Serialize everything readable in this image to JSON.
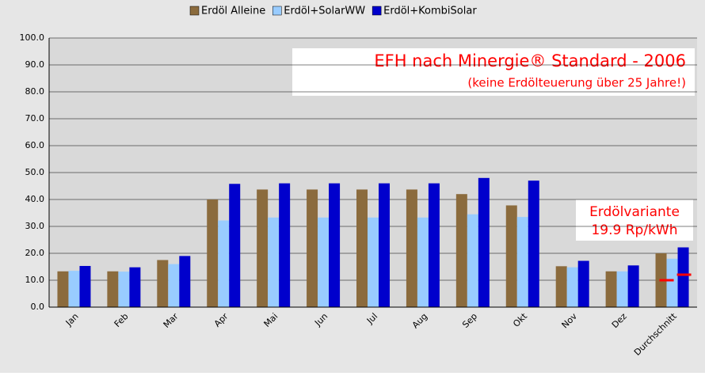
{
  "chart_data": {
    "type": "bar",
    "title": "EFH nach Minergie® Standard - 2006",
    "subtitle": "(keine Erdölteuerung über 25 Jahre!)",
    "annotations": [
      "Erdölvariante",
      "19.9 Rp/kWh"
    ],
    "categories": [
      "Jan",
      "Feb",
      "Mar",
      "Apr",
      "Mai",
      "Jun",
      "Jul",
      "Aug",
      "Sep",
      "Okt",
      "Nov",
      "Dez",
      "Durchschnitt"
    ],
    "series": [
      {
        "name": "Erdöl Alleine",
        "color": "#8b6b3d",
        "values": [
          13.3,
          13.3,
          17.5,
          40,
          43.7,
          43.7,
          43.7,
          43.7,
          42,
          37.8,
          15.2,
          13.3,
          20
        ]
      },
      {
        "name": "Erdöl+SolarWW",
        "color": "#99ccff",
        "values": [
          13.5,
          13.2,
          16,
          32.2,
          33.3,
          33.3,
          33.3,
          33.3,
          34.5,
          33.5,
          14.8,
          13.3,
          18
        ]
      },
      {
        "name": "Erdöl+KombiSolar",
        "color": "#0000cc",
        "values": [
          15.3,
          14.8,
          19,
          45.8,
          46,
          46,
          46,
          46,
          48,
          47,
          17.2,
          15.5,
          22.2
        ]
      }
    ],
    "ylim": [
      0,
      100
    ],
    "yticks": [
      {
        "value": 0,
        "label": "0.0"
      },
      {
        "value": 10,
        "label": "10.0"
      },
      {
        "value": 20,
        "label": "20.0"
      },
      {
        "value": 30,
        "label": "30.0"
      },
      {
        "value": 40,
        "label": "40.0"
      },
      {
        "value": 50,
        "label": "50.0"
      },
      {
        "value": 60,
        "label": "60.0"
      },
      {
        "value": 70,
        "label": "70.0"
      },
      {
        "value": 80,
        "label": "80.0"
      },
      {
        "value": 90,
        "label": "90.0"
      },
      {
        "value": 100,
        "label": "100.0"
      }
    ],
    "grid": true,
    "legend": "top"
  }
}
